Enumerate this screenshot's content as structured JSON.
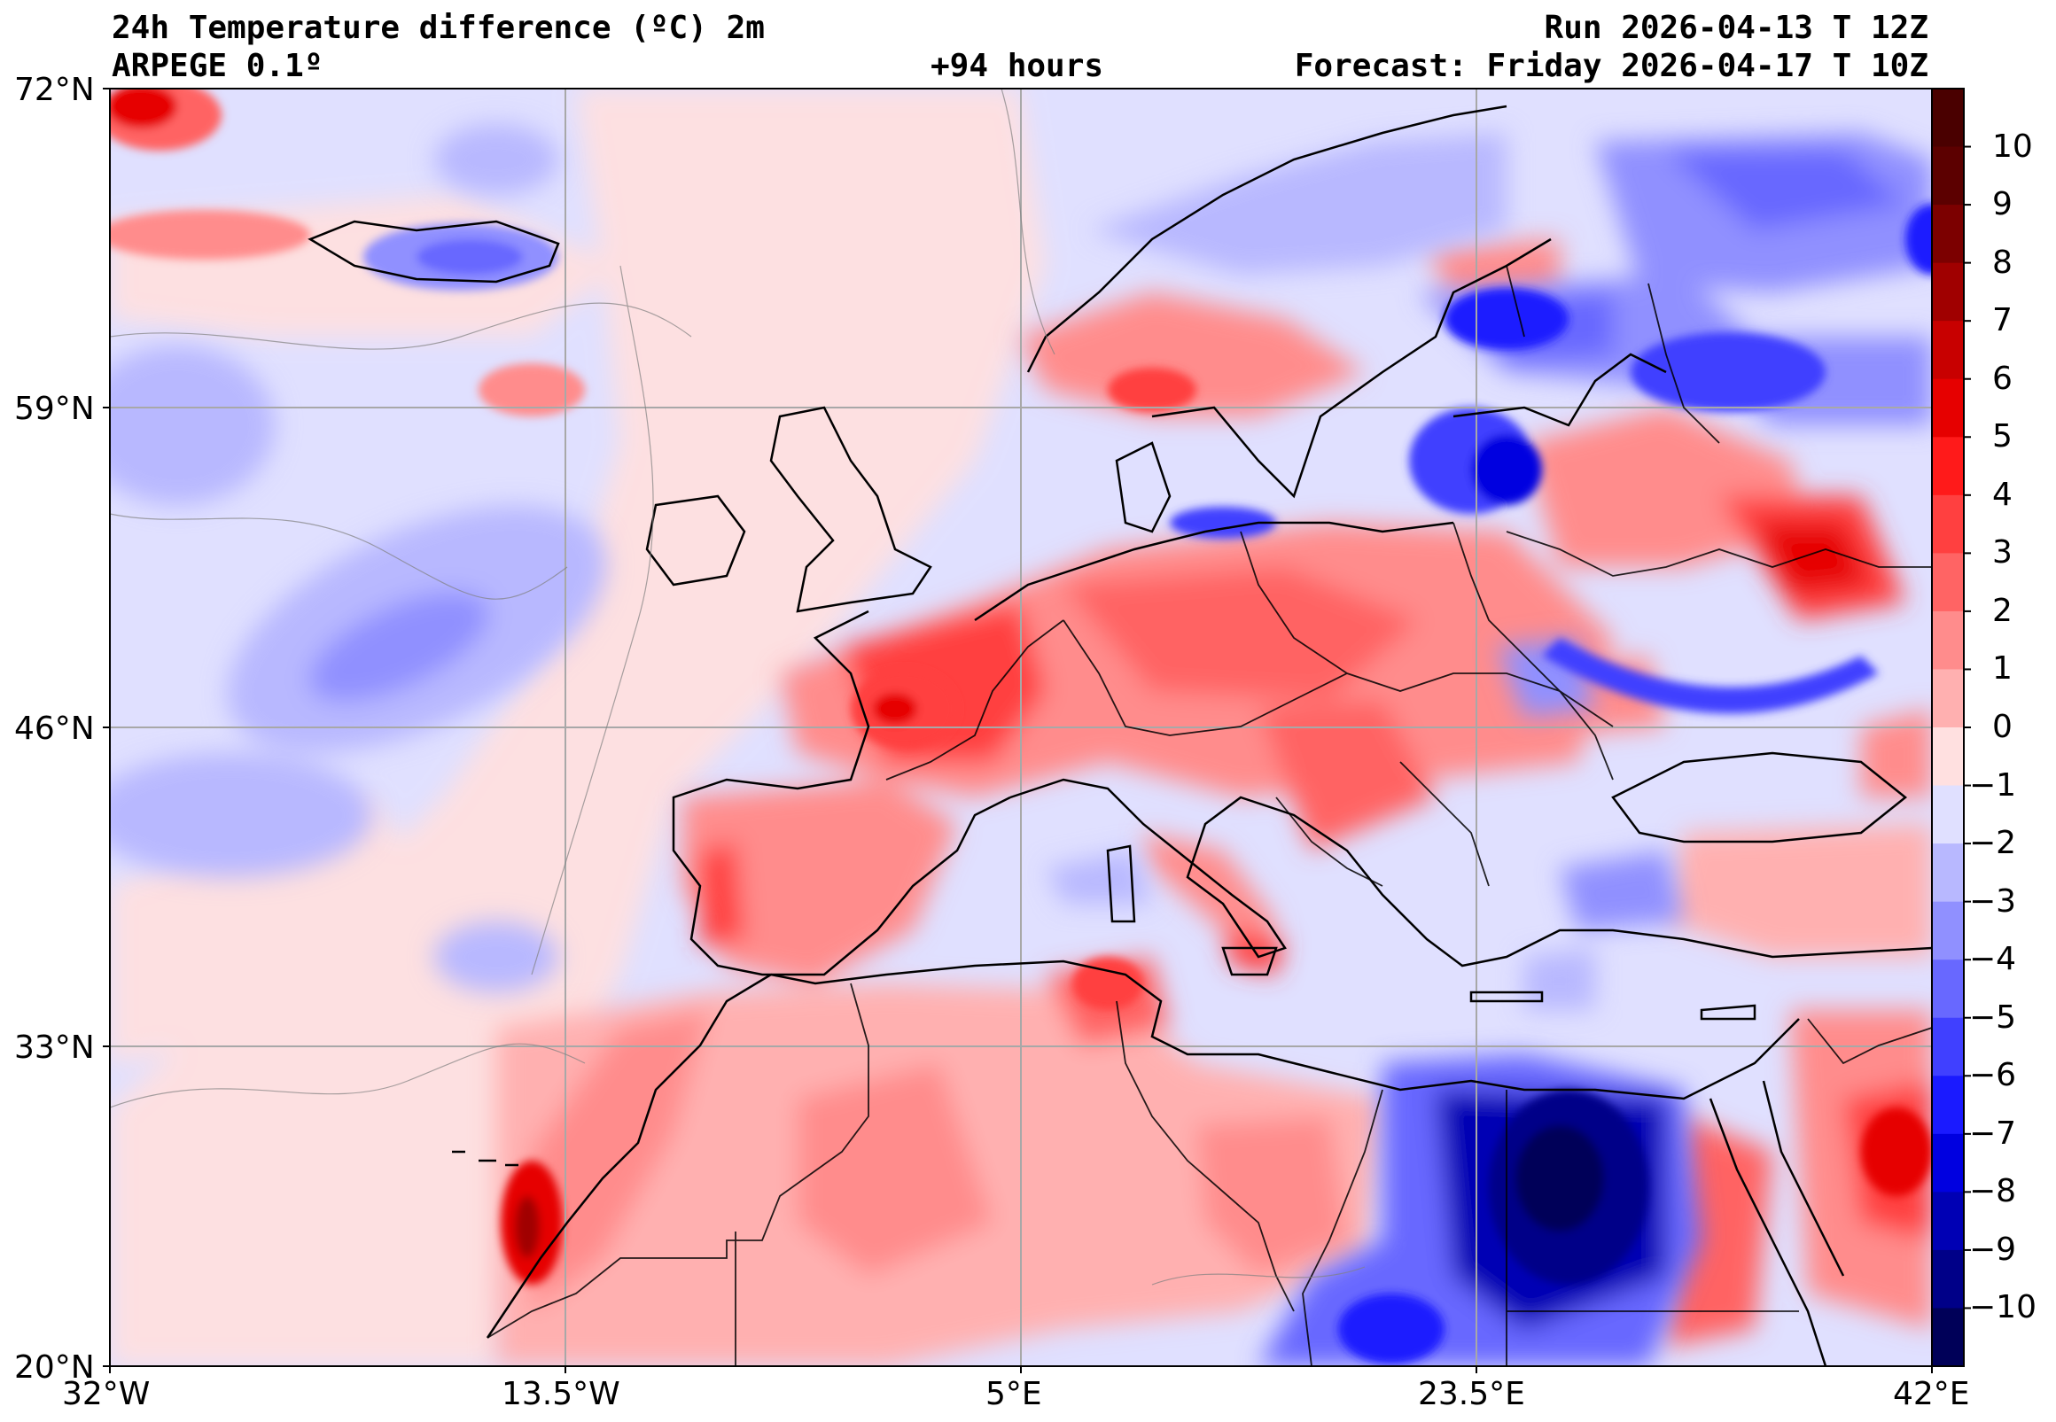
{
  "header": {
    "title": "24h Temperature difference (ºC) 2m",
    "model": "ARPEGE 0.1º",
    "lead": "+94 hours",
    "run": "Run 2026-04-13 T 12Z",
    "forecast": "Forecast: Friday 2026-04-17 T 10Z"
  },
  "axes": {
    "lat_labels": [
      "72°N",
      "59°N",
      "46°N",
      "33°N",
      "20°N"
    ],
    "lon_labels": [
      "32°W",
      "13.5°W",
      "5°E",
      "23.5°E",
      "42°E"
    ]
  },
  "colorbar": {
    "labels": [
      "10",
      "9",
      "8",
      "7",
      "6",
      "5",
      "4",
      "3",
      "2",
      "1",
      "0",
      "−1",
      "−2",
      "−3",
      "−4",
      "−5",
      "−6",
      "−7",
      "−8",
      "−9",
      "−10"
    ],
    "colors": [
      "#5c0000",
      "#7c0000",
      "#a00000",
      "#c80000",
      "#e60000",
      "#ff1a1a",
      "#ff4040",
      "#ff6464",
      "#ff8c8c",
      "#ffb0b0",
      "#ffe0e0",
      "#e0e0ff",
      "#b8b8ff",
      "#9090ff",
      "#6868ff",
      "#4040ff",
      "#1a1aff",
      "#0000e0",
      "#0000b4",
      "#000088",
      "#000058"
    ]
  }
}
